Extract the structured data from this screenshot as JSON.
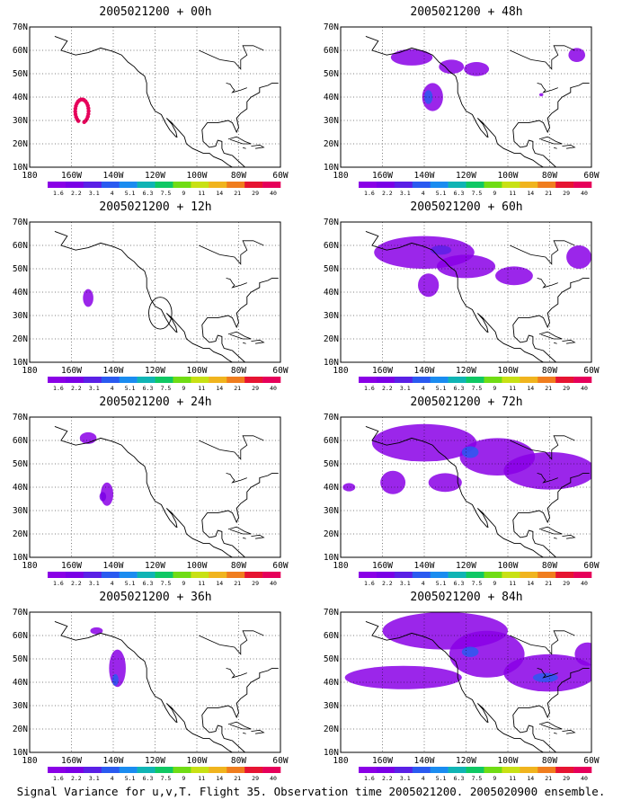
{
  "footer": "Signal Variance for u,v,T. Flight 35. Observation time 2005021200. 2005020900 ensemble.",
  "lat_labels": [
    "70N",
    "60N",
    "50N",
    "40N",
    "30N",
    "20N",
    "10N"
  ],
  "lon_labels": [
    "180",
    "160W",
    "140W",
    "120W",
    "100W",
    "80W",
    "60W"
  ],
  "scale_labels": [
    "1.6",
    "2.2",
    "3.1",
    "4",
    "5.1",
    "6.3",
    "7.5",
    "9",
    "11",
    "14",
    "21",
    "29",
    "40"
  ],
  "colors": {
    "scale": [
      "#8a00e6",
      "#7a00e6",
      "#5a20e6",
      "#2a5af0",
      "#1a8cf0",
      "#10b4b4",
      "#10c864",
      "#70dc14",
      "#c8e114",
      "#f0b41e",
      "#f07d1e",
      "#e61432",
      "#e6005a"
    ],
    "land_outline": "#000000",
    "grid": "#000000"
  },
  "panels": [
    {
      "title": "2005021200 + 00h"
    },
    {
      "title": "2005021200 + 48h"
    },
    {
      "title": "2005021200 + 12h"
    },
    {
      "title": "2005021200 + 60h"
    },
    {
      "title": "2005021200 + 24h"
    },
    {
      "title": "2005021200 + 72h"
    },
    {
      "title": "2005021200 + 36h"
    },
    {
      "title": "2005021200 + 84h"
    }
  ]
}
